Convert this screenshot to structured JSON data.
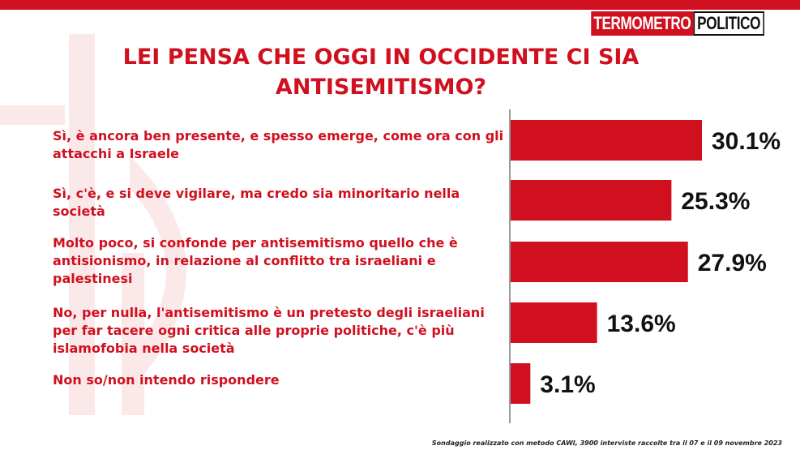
{
  "brand": {
    "name_part1": "TERMOMETRO",
    "name_part2": "POLITICO"
  },
  "title_line1": "LEI PENSA CHE OGGI IN OCCIDENTE CI SIA",
  "title_line2": "ANTISEMITISMO?",
  "footnote": "Sondaggio realizzato con metodo CAWI, 3900 interviste raccolte tra il 07 e il 09 novembre 2023",
  "colors": {
    "accent": "#d0101f",
    "text": "#111111"
  },
  "chart_data": {
    "type": "bar",
    "orientation": "horizontal",
    "categories": [
      "Sì, è ancora ben presente, e spesso emerge, come ora con gli attacchi a Israele",
      "Sì, c'è, e si deve vigilare, ma credo sia minoritario nella società",
      "Molto poco, si confonde per antisemitismo quello che è antisionismo, in relazione al conflitto tra israeliani e palestinesi",
      "No, per nulla, l'antisemitismo è un pretesto degli israeliani per far tacere ogni critica alle proprie politiche, c'è più islamofobia nella società",
      "Non so/non intendo rispondere"
    ],
    "values": [
      30.1,
      25.3,
      27.9,
      13.6,
      3.1
    ],
    "value_labels": [
      "30.1%",
      "25.3%",
      "27.9%",
      "13.6%",
      "3.1%"
    ],
    "title": "LEI PENSA CHE OGGI IN OCCIDENTE CI SIA ANTISEMITISMO?",
    "xlim": [
      0,
      30.1
    ],
    "grid": false,
    "legend": "none"
  }
}
